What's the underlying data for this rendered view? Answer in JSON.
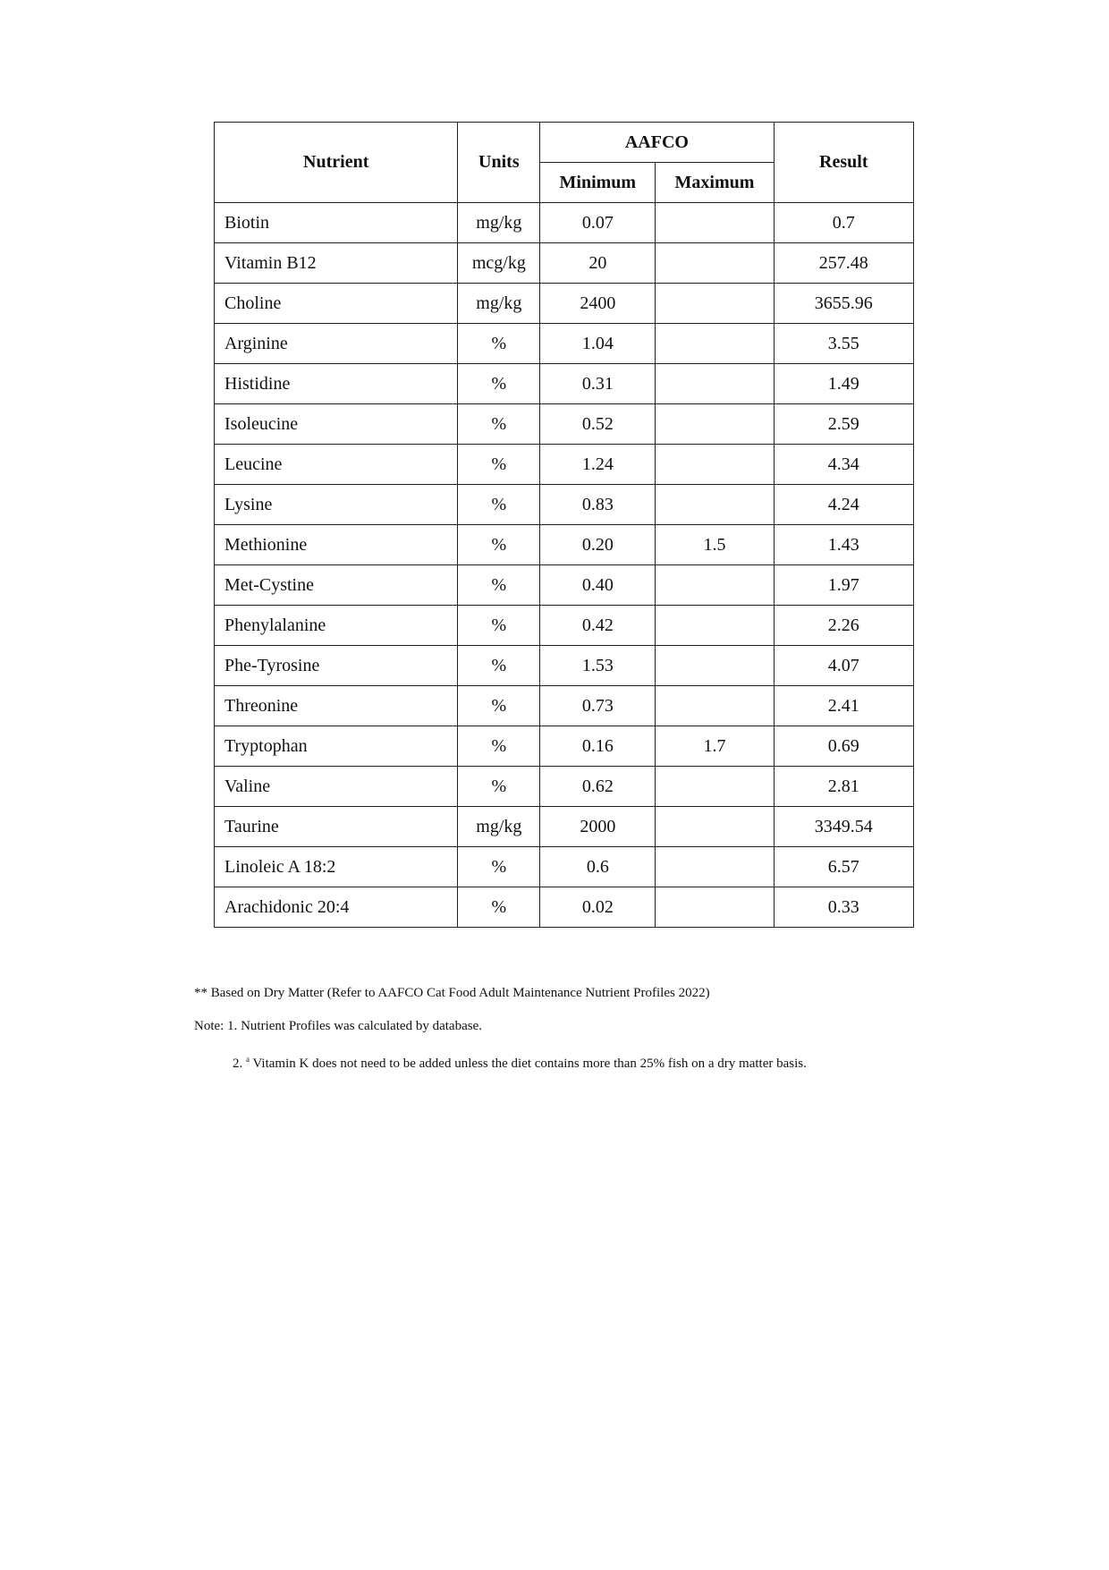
{
  "table": {
    "headers": {
      "nutrient": "Nutrient",
      "units": "Units",
      "group": "AAFCO",
      "minimum": "Minimum",
      "maximum": "Maximum",
      "result": "Result"
    },
    "rows": [
      {
        "nutrient": "Biotin",
        "units": "mg/kg",
        "min": "0.07",
        "max": "",
        "result": "0.7"
      },
      {
        "nutrient": "Vitamin B12",
        "units": "mcg/kg",
        "min": "20",
        "max": "",
        "result": "257.48"
      },
      {
        "nutrient": "Choline",
        "units": "mg/kg",
        "min": "2400",
        "max": "",
        "result": "3655.96"
      },
      {
        "nutrient": "Arginine",
        "units": "%",
        "min": "1.04",
        "max": "",
        "result": "3.55"
      },
      {
        "nutrient": "Histidine",
        "units": "%",
        "min": "0.31",
        "max": "",
        "result": "1.49"
      },
      {
        "nutrient": "Isoleucine",
        "units": "%",
        "min": "0.52",
        "max": "",
        "result": "2.59"
      },
      {
        "nutrient": "Leucine",
        "units": "%",
        "min": "1.24",
        "max": "",
        "result": "4.34"
      },
      {
        "nutrient": "Lysine",
        "units": "%",
        "min": "0.83",
        "max": "",
        "result": "4.24"
      },
      {
        "nutrient": "Methionine",
        "units": "%",
        "min": "0.20",
        "max": "1.5",
        "result": "1.43"
      },
      {
        "nutrient": "Met-Cystine",
        "units": "%",
        "min": "0.40",
        "max": "",
        "result": "1.97"
      },
      {
        "nutrient": "Phenylalanine",
        "units": "%",
        "min": "0.42",
        "max": "",
        "result": "2.26"
      },
      {
        "nutrient": "Phe-Tyrosine",
        "units": "%",
        "min": "1.53",
        "max": "",
        "result": "4.07"
      },
      {
        "nutrient": "Threonine",
        "units": "%",
        "min": "0.73",
        "max": "",
        "result": "2.41"
      },
      {
        "nutrient": "Tryptophan",
        "units": "%",
        "min": "0.16",
        "max": "1.7",
        "result": "0.69"
      },
      {
        "nutrient": "Valine",
        "units": "%",
        "min": "0.62",
        "max": "",
        "result": "2.81"
      },
      {
        "nutrient": "Taurine",
        "units": "mg/kg",
        "min": "2000",
        "max": "",
        "result": "3349.54"
      },
      {
        "nutrient": "Linoleic A 18:2",
        "units": "%",
        "min": "0.6",
        "max": "",
        "result": "6.57"
      },
      {
        "nutrient": "Arachidonic 20:4",
        "units": "%",
        "min": "0.02",
        "max": "",
        "result": "0.33"
      }
    ]
  },
  "notes": {
    "basis": "** Based on Dry Matter (Refer to AAFCO Cat Food Adult Maintenance Nutrient Profiles 2022)",
    "note1": "Note: 1. Nutrient Profiles was calculated by database.",
    "note2_prefix": "2. ",
    "note2_sup": "a",
    "note2_text": "Vitamin K does not need to be added unless the diet contains more than 25% fish on a dry matter basis."
  }
}
